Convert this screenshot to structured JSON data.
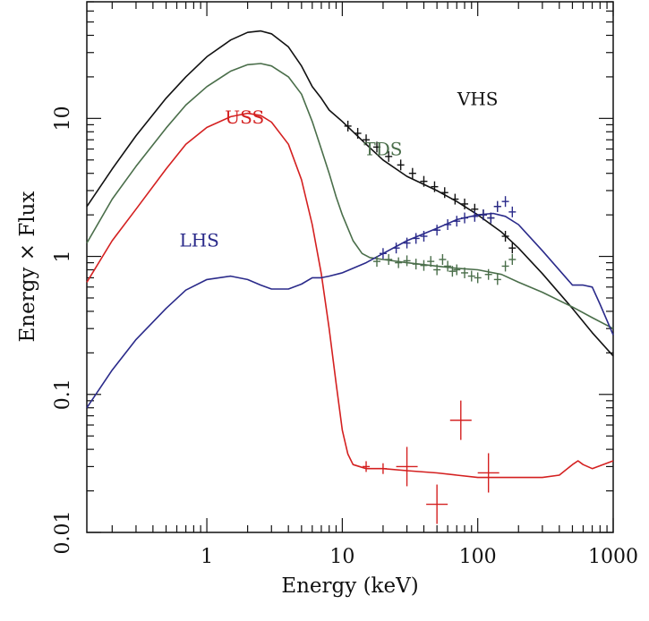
{
  "chart_data": {
    "type": "line",
    "xlabel": "Energy (keV)",
    "ylabel": "Energy × Flux",
    "xscale": "log",
    "yscale": "log",
    "xlim": [
      0.13,
      1000
    ],
    "ylim": [
      0.01,
      70
    ],
    "x_ticks": [
      {
        "value": 1,
        "label": "1"
      },
      {
        "value": 10,
        "label": "10"
      },
      {
        "value": 100,
        "label": "100"
      },
      {
        "value": 1000,
        "label": "1000"
      }
    ],
    "y_ticks": [
      {
        "value": 0.01,
        "label": "0.01"
      },
      {
        "value": 0.1,
        "label": "0.1"
      },
      {
        "value": 1,
        "label": "1"
      },
      {
        "value": 10,
        "label": "10"
      }
    ],
    "grid": false,
    "legend": "none",
    "series": [
      {
        "name": "VHS",
        "color": "#111111",
        "label_at": [
          100,
          12.5
        ],
        "model": [
          [
            0.13,
            2.3
          ],
          [
            0.2,
            4.3
          ],
          [
            0.3,
            7.5
          ],
          [
            0.5,
            14
          ],
          [
            0.7,
            20
          ],
          [
            1,
            28
          ],
          [
            1.5,
            37
          ],
          [
            2,
            42
          ],
          [
            2.5,
            43
          ],
          [
            3,
            41
          ],
          [
            4,
            33
          ],
          [
            5,
            24
          ],
          [
            6,
            17
          ],
          [
            7,
            14
          ],
          [
            8,
            11.5
          ],
          [
            10,
            9.5
          ],
          [
            15,
            6.5
          ],
          [
            20,
            5
          ],
          [
            30,
            3.8
          ],
          [
            50,
            3
          ],
          [
            70,
            2.5
          ],
          [
            100,
            2
          ],
          [
            150,
            1.5
          ],
          [
            200,
            1.15
          ],
          [
            300,
            0.75
          ],
          [
            500,
            0.42
          ],
          [
            700,
            0.28
          ],
          [
            1000,
            0.19
          ]
        ],
        "data": [
          [
            11,
            8.8
          ],
          [
            13,
            7.8
          ],
          [
            15,
            7
          ],
          [
            18,
            6.2
          ],
          [
            22,
            5.3
          ],
          [
            27,
            4.6
          ],
          [
            33,
            4
          ],
          [
            40,
            3.5
          ],
          [
            48,
            3.2
          ],
          [
            57,
            2.9
          ],
          [
            68,
            2.6
          ],
          [
            80,
            2.4
          ],
          [
            95,
            2.2
          ],
          [
            110,
            2
          ],
          [
            125,
            1.9
          ],
          [
            140,
            2.3
          ],
          [
            160,
            1.4
          ],
          [
            180,
            1.15
          ]
        ]
      },
      {
        "name": "TDS",
        "color": "#4a6e4a",
        "label_at": [
          20,
          5.4
        ],
        "model": [
          [
            0.13,
            1.25
          ],
          [
            0.2,
            2.6
          ],
          [
            0.3,
            4.5
          ],
          [
            0.5,
            8.5
          ],
          [
            0.7,
            12.5
          ],
          [
            1,
            17
          ],
          [
            1.5,
            22
          ],
          [
            2,
            24.5
          ],
          [
            2.5,
            25
          ],
          [
            3,
            24
          ],
          [
            4,
            20
          ],
          [
            5,
            15
          ],
          [
            6,
            9.5
          ],
          [
            7,
            6
          ],
          [
            8,
            4
          ],
          [
            9,
            2.7
          ],
          [
            10,
            2
          ],
          [
            12,
            1.3
          ],
          [
            14,
            1.05
          ],
          [
            16,
            0.98
          ],
          [
            20,
            0.95
          ],
          [
            30,
            0.9
          ],
          [
            50,
            0.85
          ],
          [
            70,
            0.82
          ],
          [
            100,
            0.8
          ],
          [
            150,
            0.74
          ],
          [
            200,
            0.65
          ],
          [
            300,
            0.55
          ],
          [
            500,
            0.43
          ],
          [
            700,
            0.36
          ],
          [
            1000,
            0.3
          ]
        ],
        "data": [
          [
            18,
            0.92
          ],
          [
            22,
            0.95
          ],
          [
            26,
            0.9
          ],
          [
            30,
            0.93
          ],
          [
            35,
            0.88
          ],
          [
            40,
            0.86
          ],
          [
            45,
            0.92
          ],
          [
            50,
            0.8
          ],
          [
            55,
            0.95
          ],
          [
            60,
            0.85
          ],
          [
            65,
            0.78
          ],
          [
            70,
            0.8
          ],
          [
            80,
            0.76
          ],
          [
            90,
            0.72
          ],
          [
            100,
            0.7
          ],
          [
            120,
            0.74
          ],
          [
            140,
            0.68
          ],
          [
            160,
            0.85
          ],
          [
            180,
            0.95
          ]
        ]
      },
      {
        "name": "USS",
        "color": "#d42020",
        "label_at": [
          1.9,
          9.2
        ],
        "model": [
          [
            0.13,
            0.65
          ],
          [
            0.2,
            1.3
          ],
          [
            0.3,
            2.2
          ],
          [
            0.5,
            4.3
          ],
          [
            0.7,
            6.5
          ],
          [
            1,
            8.6
          ],
          [
            1.5,
            10.3
          ],
          [
            2,
            10.9
          ],
          [
            2.5,
            10.5
          ],
          [
            3,
            9.4
          ],
          [
            4,
            6.5
          ],
          [
            5,
            3.6
          ],
          [
            6,
            1.7
          ],
          [
            7,
            0.75
          ],
          [
            8,
            0.3
          ],
          [
            9,
            0.12
          ],
          [
            10,
            0.055
          ],
          [
            11,
            0.037
          ],
          [
            12,
            0.031
          ],
          [
            15,
            0.029
          ],
          [
            20,
            0.029
          ],
          [
            30,
            0.028
          ],
          [
            50,
            0.027
          ],
          [
            70,
            0.026
          ],
          [
            100,
            0.025
          ],
          [
            200,
            0.025
          ],
          [
            300,
            0.025
          ],
          [
            400,
            0.026
          ],
          [
            500,
            0.031
          ],
          [
            550,
            0.033
          ],
          [
            600,
            0.031
          ],
          [
            700,
            0.029
          ],
          [
            1000,
            0.033
          ]
        ],
        "data": [
          [
            15,
            0.03
          ],
          [
            20,
            0.029
          ],
          [
            30,
            0.03
          ],
          [
            50,
            0.016
          ],
          [
            75,
            0.065
          ],
          [
            120,
            0.027
          ]
        ]
      },
      {
        "name": "LHS",
        "color": "#2a2a8a",
        "label_at": [
          0.88,
          1.18
        ],
        "model": [
          [
            0.13,
            0.08
          ],
          [
            0.2,
            0.15
          ],
          [
            0.3,
            0.25
          ],
          [
            0.5,
            0.42
          ],
          [
            0.7,
            0.57
          ],
          [
            1,
            0.68
          ],
          [
            1.5,
            0.72
          ],
          [
            2,
            0.68
          ],
          [
            2.5,
            0.62
          ],
          [
            3,
            0.58
          ],
          [
            4,
            0.58
          ],
          [
            5,
            0.63
          ],
          [
            6,
            0.7
          ],
          [
            7,
            0.7
          ],
          [
            8,
            0.72
          ],
          [
            10,
            0.76
          ],
          [
            15,
            0.9
          ],
          [
            20,
            1.05
          ],
          [
            30,
            1.3
          ],
          [
            50,
            1.6
          ],
          [
            70,
            1.85
          ],
          [
            100,
            2.0
          ],
          [
            130,
            2.05
          ],
          [
            160,
            1.95
          ],
          [
            200,
            1.7
          ],
          [
            300,
            1.1
          ],
          [
            500,
            0.62
          ],
          [
            600,
            0.62
          ],
          [
            700,
            0.6
          ],
          [
            800,
            0.45
          ],
          [
            1000,
            0.27
          ]
        ],
        "data": [
          [
            20,
            1.05
          ],
          [
            25,
            1.15
          ],
          [
            30,
            1.25
          ],
          [
            35,
            1.35
          ],
          [
            40,
            1.4
          ],
          [
            50,
            1.55
          ],
          [
            60,
            1.7
          ],
          [
            70,
            1.8
          ],
          [
            80,
            1.9
          ],
          [
            95,
            1.95
          ],
          [
            110,
            2.0
          ],
          [
            125,
            1.9
          ],
          [
            140,
            2.3
          ],
          [
            160,
            2.5
          ],
          [
            180,
            2.1
          ]
        ]
      }
    ]
  }
}
